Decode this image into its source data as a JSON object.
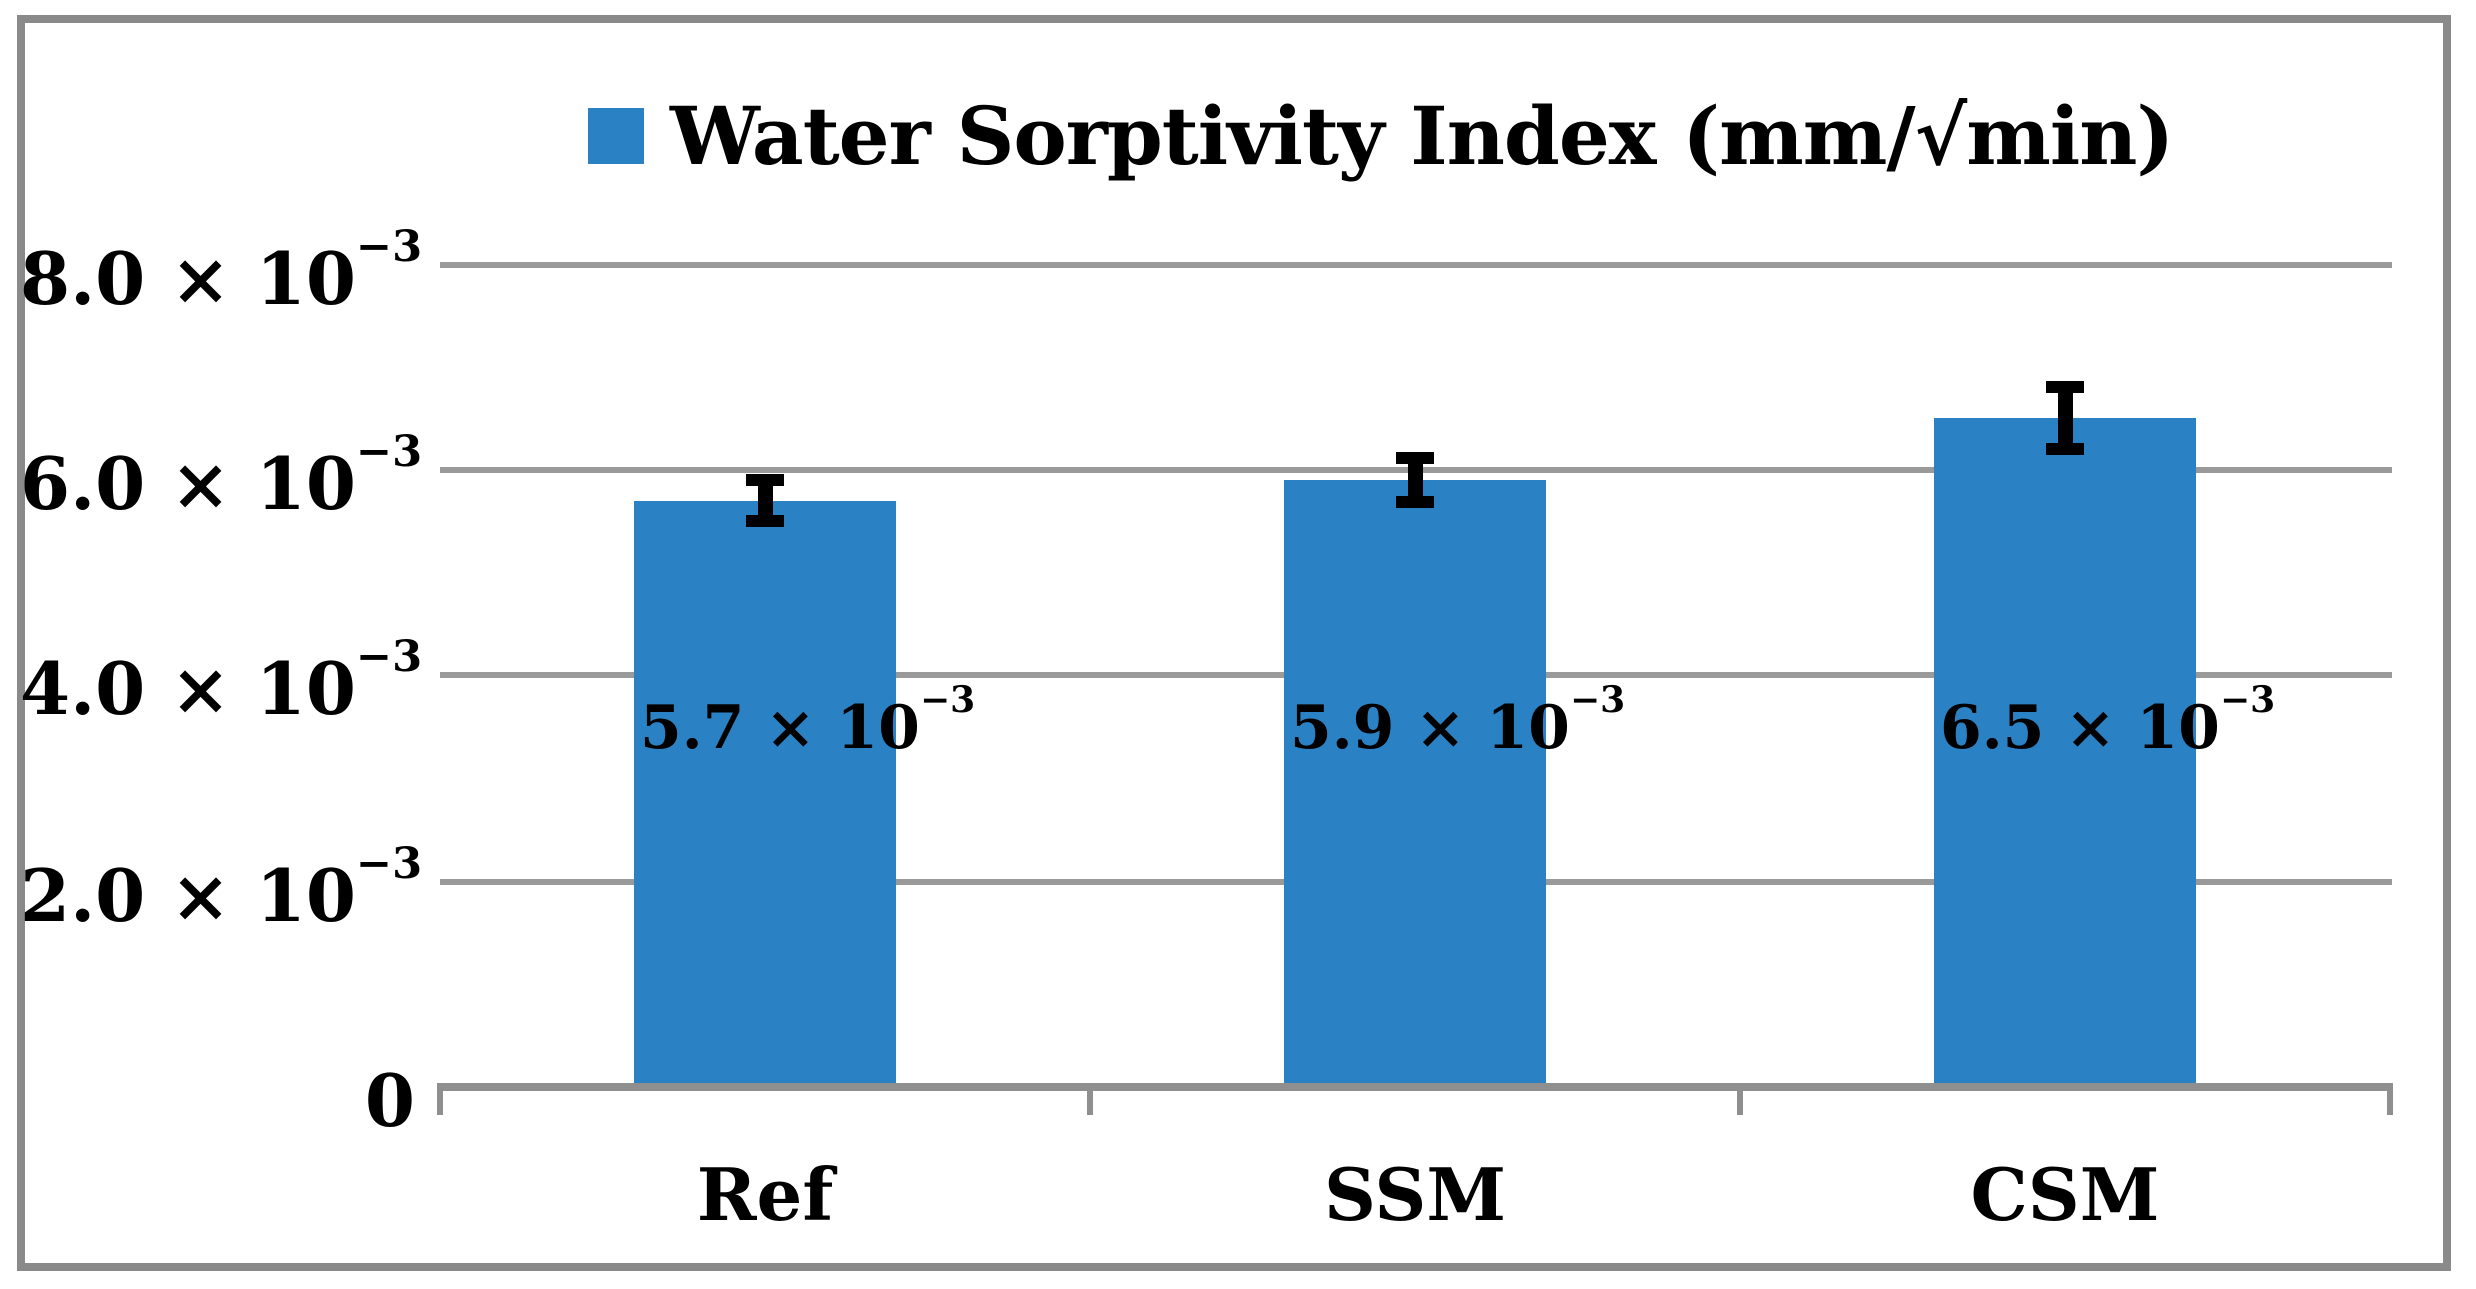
{
  "colors": {
    "bar": "#2A82C4",
    "grid": "#9A9A9A",
    "axis": "#8F8F8F",
    "border": "#8A8A8A",
    "error": "#000000",
    "text": "#000000",
    "background": "#FFFFFF"
  },
  "legend": {
    "label": "Water Sorptivity Index (mm/√min)"
  },
  "yaxis": {
    "ticks": [
      {
        "base": "8.0 × 10",
        "exp": "−3"
      },
      {
        "base": "6.0 × 10",
        "exp": "−3"
      },
      {
        "base": "4.0 × 10",
        "exp": "−3"
      },
      {
        "base": "2.0 × 10",
        "exp": "−3"
      },
      {
        "base": "0",
        "exp": ""
      }
    ]
  },
  "xaxis": {
    "categories": [
      "Ref",
      "SSM",
      "CSM"
    ]
  },
  "bars": [
    {
      "label_base": "5.7 × 10",
      "label_exp": "−3"
    },
    {
      "label_base": "5.9 × 10",
      "label_exp": "−3"
    },
    {
      "label_base": "6.5 × 10",
      "label_exp": "−3"
    }
  ],
  "chart_data": {
    "type": "bar",
    "title": "Water Sorptivity Index (mm/√min)",
    "categories": [
      "Ref",
      "SSM",
      "CSM"
    ],
    "values": [
      0.0057,
      0.0059,
      0.0065
    ],
    "value_labels": [
      "5.7 × 10⁻³",
      "5.9 × 10⁻³",
      "6.5 × 10⁻³"
    ],
    "error_bars": [
      0.00026,
      0.00027,
      0.00036
    ],
    "xlabel": "",
    "ylabel": "",
    "ylim": [
      0,
      0.008
    ],
    "ytick_labels": [
      "0",
      "2.0 × 10⁻³",
      "4.0 × 10⁻³",
      "6.0 × 10⁻³",
      "8.0 × 10⁻³"
    ],
    "grid": true,
    "legend_position": "top-center",
    "bar_color": "#2A82C4"
  }
}
